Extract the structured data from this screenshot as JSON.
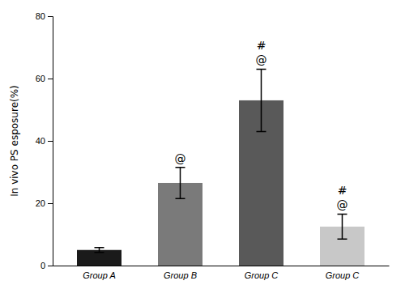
{
  "chart_data": {
    "type": "bar",
    "categories": [
      "Group A",
      "Group B",
      "Group C",
      "Group C"
    ],
    "values": [
      5.0,
      26.5,
      53.0,
      12.5
    ],
    "errors": [
      0.8,
      5.0,
      10.0,
      4.0
    ],
    "colors": [
      "#1a1a1a",
      "#7a7a7a",
      "#595959",
      "#c8c8c8"
    ],
    "y_label": "In vivo PS esposure(%)",
    "ylim": [
      0,
      80
    ],
    "yticks": [
      0,
      20,
      40,
      60,
      80
    ],
    "annotations": [
      [],
      [
        "@"
      ],
      [
        "@",
        "#"
      ],
      [
        "@",
        "#"
      ]
    ],
    "grid": false
  }
}
